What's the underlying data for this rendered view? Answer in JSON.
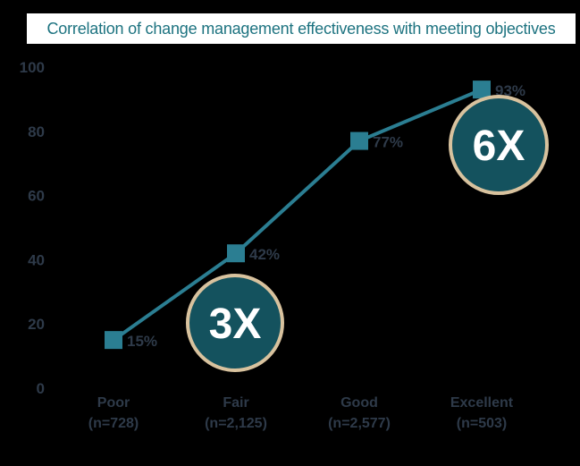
{
  "colors": {
    "background": "#000000",
    "title_background": "#ffffff",
    "title_text": "#1d7380",
    "line": "#2b7e92",
    "marker": "#2b7e92",
    "label_text": "#2e3a49",
    "annotation_fill": "#14525e",
    "annotation_border": "#d8c29e",
    "annotation_text": "#ffffff"
  },
  "chart_data": {
    "type": "line",
    "title": "Correlation of change management effectiveness with meeting objectives",
    "categories": [
      "Poor",
      "Fair",
      "Good",
      "Excellent"
    ],
    "category_sublabels": [
      "(n=728)",
      "(n=2,125)",
      "(n=2,577)",
      "(n=503)"
    ],
    "values": [
      15,
      42,
      77,
      93
    ],
    "point_labels": [
      "15%",
      "42%",
      "77%",
      "93%"
    ],
    "xlabel": "",
    "ylabel": "",
    "ylim": [
      0,
      100
    ],
    "yticks": [
      "0",
      "20",
      "40",
      "60",
      "80",
      "100"
    ],
    "grid": false,
    "legend": false,
    "marker_shape": "square",
    "annotations": [
      {
        "text": "3X",
        "category": "Fair"
      },
      {
        "text": "6X",
        "category": "Excellent"
      }
    ]
  }
}
